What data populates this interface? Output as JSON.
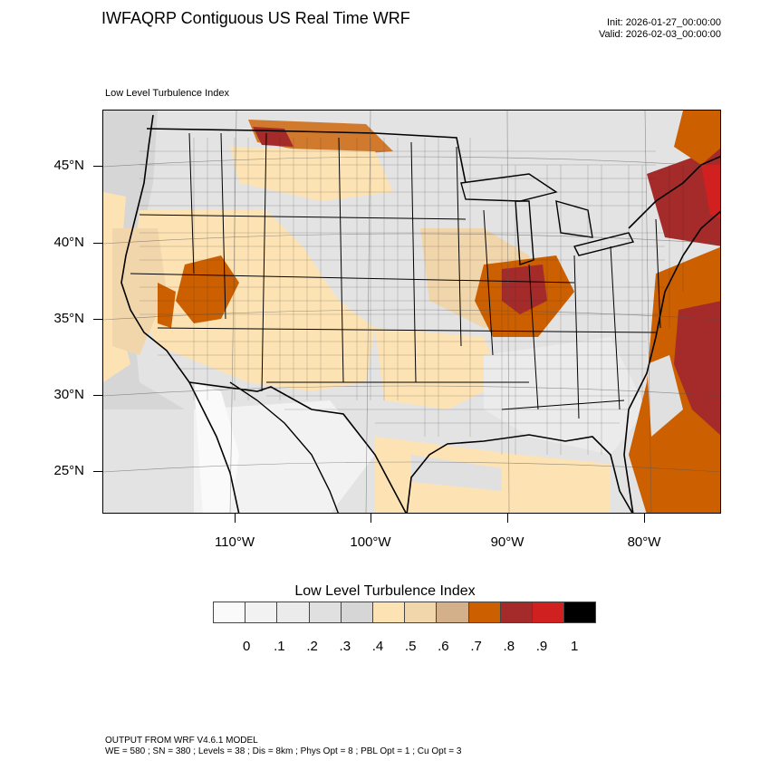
{
  "header": {
    "title": "IWFAQRP Contiguous US Real Time WRF",
    "init": "Init: 2026-01-27_00:00:00",
    "valid": "Valid: 2026-02-03_00:00:00"
  },
  "map": {
    "subtitle": "Low Level Turbulence Index",
    "lat_labels": [
      "45°N",
      "40°N",
      "35°N",
      "30°N",
      "25°N"
    ],
    "lon_labels": [
      "110°W",
      "100°W",
      "90°W",
      "80°W"
    ]
  },
  "colorbar": {
    "title": "Low Level Turbulence Index",
    "labels": [
      "0",
      ".1",
      ".2",
      ".3",
      ".4",
      ".5",
      ".6",
      ".7",
      ".8",
      ".9",
      "1"
    ],
    "colors": [
      "#fafafa",
      "#f2f2f2",
      "#ebebeb",
      "#e0e0e0",
      "#d6d6d6",
      "#fde3b4",
      "#f2d6ab",
      "#d4b08a",
      "#cc5f00",
      "#a52a2a",
      "#d02020",
      "#000000"
    ]
  },
  "footer": {
    "line1": "OUTPUT FROM WRF V4.6.1 MODEL",
    "line2": "WE = 580 ; SN = 380 ; Levels = 38 ; Dis = 8km ; Phys Opt = 8 ; PBL Opt = 1 ; Cu Opt = 3"
  }
}
